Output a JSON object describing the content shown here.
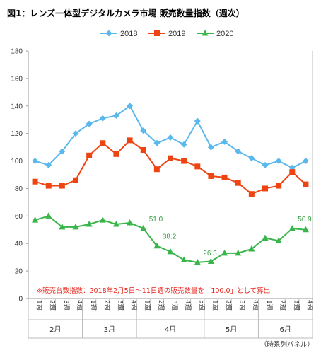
{
  "chart_data": {
    "type": "line",
    "title": "図1：レンズ一体型デジタルカメラ市場 販売数量指数（週次）",
    "ylim": [
      0,
      180
    ],
    "yticks": [
      0,
      20,
      40,
      60,
      80,
      100,
      120,
      140,
      160,
      180
    ],
    "reference_line": 100,
    "legend_position": "top",
    "x": [
      "1週",
      "2週",
      "3週",
      "4週",
      "1週",
      "2週",
      "3週",
      "4週",
      "1週",
      "2週",
      "3週",
      "4週",
      "5週",
      "1週",
      "2週",
      "3週",
      "4週",
      "1週",
      "2週",
      "3週",
      "4週"
    ],
    "months": [
      {
        "label": "2月",
        "count": 4
      },
      {
        "label": "3月",
        "count": 4
      },
      {
        "label": "4月",
        "count": 5
      },
      {
        "label": "5月",
        "count": 4
      },
      {
        "label": "6月",
        "count": 4
      }
    ],
    "series": [
      {
        "name": "2018",
        "color": "#5bb8ec",
        "marker": "diamond",
        "values": [
          100,
          97,
          107,
          120,
          127,
          131,
          133,
          140,
          122,
          113,
          117,
          112,
          129,
          110,
          114,
          107,
          102,
          97,
          100,
          95,
          100
        ]
      },
      {
        "name": "2019",
        "color": "#ee4411",
        "marker": "square",
        "values": [
          85,
          82,
          82,
          86,
          104,
          113,
          105,
          115,
          108,
          94,
          102,
          100,
          96,
          89,
          88,
          84,
          76,
          80,
          82,
          92,
          83
        ]
      },
      {
        "name": "2020",
        "color": "#39b54a",
        "marker": "triangle",
        "values": [
          57,
          60,
          52,
          52,
          54,
          57,
          54,
          55,
          51.0,
          38.2,
          34,
          28,
          26.3,
          27,
          33,
          33,
          36,
          44,
          42,
          50.9,
          50
        ]
      }
    ],
    "annotations": [
      {
        "text": "51.0",
        "index": 8
      },
      {
        "text": "38.2",
        "index": 9
      },
      {
        "text": "26.3",
        "index": 12
      },
      {
        "text": "50.9",
        "index": 19
      }
    ],
    "note": "※販売台数指数：2018年2月5日～11日週の販売数量を「100.0」として算出",
    "source": "（時系列パネル）"
  }
}
